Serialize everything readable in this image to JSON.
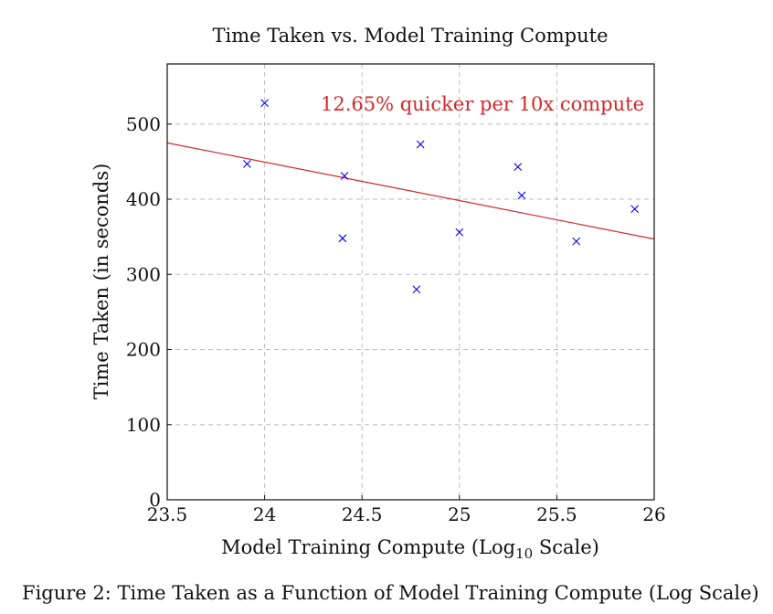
{
  "chart_data": {
    "type": "scatter",
    "title": "Time Taken vs. Model Training Compute",
    "xlabel_main": "Model Training Compute (Log",
    "xlabel_sub": "10",
    "xlabel_end": " Scale)",
    "ylabel": "Time Taken (in seconds)",
    "xlim": [
      23.5,
      26
    ],
    "ylim": [
      0,
      580
    ],
    "x_ticks": [
      23.5,
      24,
      24.5,
      25,
      25.5,
      26
    ],
    "x_tick_labels": [
      "23.5",
      "24",
      "24.5",
      "25",
      "25.5",
      "26"
    ],
    "y_ticks": [
      0,
      100,
      200,
      300,
      400,
      500
    ],
    "y_tick_labels": [
      "0",
      "100",
      "200",
      "300",
      "400",
      "500"
    ],
    "grid": true,
    "marker_color": "#0000ff",
    "trend_color": "#d62728",
    "points": [
      {
        "x": 23.91,
        "y": 447
      },
      {
        "x": 24.0,
        "y": 528
      },
      {
        "x": 24.41,
        "y": 431
      },
      {
        "x": 24.4,
        "y": 348
      },
      {
        "x": 24.78,
        "y": 280
      },
      {
        "x": 24.8,
        "y": 473
      },
      {
        "x": 25.0,
        "y": 356
      },
      {
        "x": 25.3,
        "y": 443
      },
      {
        "x": 25.32,
        "y": 405
      },
      {
        "x": 25.6,
        "y": 344
      },
      {
        "x": 25.9,
        "y": 387
      }
    ],
    "trend_line": {
      "x": [
        23.5,
        26
      ],
      "y": [
        475,
        347
      ]
    },
    "annotation": "12.65% quicker per 10x compute"
  },
  "caption": "Figure 2: Time Taken as a Function of Model Training Compute (Log Scale)"
}
